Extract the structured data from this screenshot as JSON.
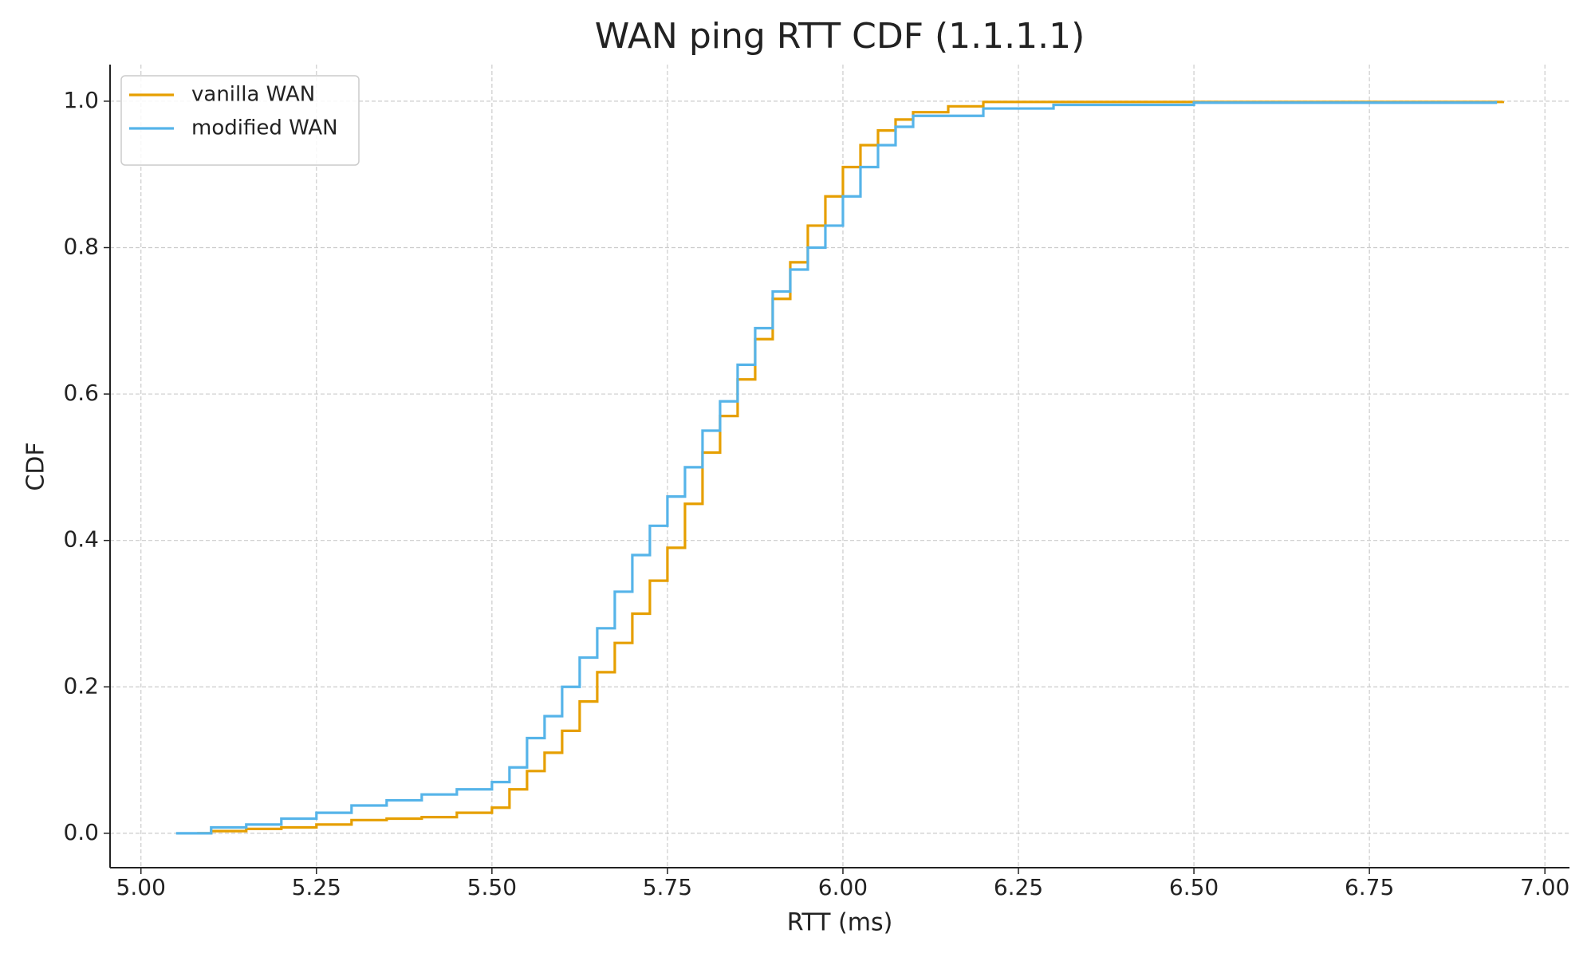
{
  "chart_data": {
    "type": "line",
    "step": "post",
    "title": "WAN ping RTT CDF (1.1.1.1)",
    "x_label": "RTT (ms)",
    "y_label": "CDF",
    "xlim": [
      4.956,
      7.035
    ],
    "ylim": [
      -0.047,
      1.05
    ],
    "xticks": [
      {
        "value": 5,
        "label": "5.00"
      },
      {
        "value": 5.25,
        "label": "5.25"
      },
      {
        "value": 5.5,
        "label": "5.50"
      },
      {
        "value": 5.75,
        "label": "5.75"
      },
      {
        "value": 6,
        "label": "6.00"
      },
      {
        "value": 6.25,
        "label": "6.25"
      },
      {
        "value": 6.5,
        "label": "6.50"
      },
      {
        "value": 6.75,
        "label": "6.75"
      },
      {
        "value": 7,
        "label": "7.00"
      }
    ],
    "yticks": [
      {
        "value": 0,
        "label": "0.0"
      },
      0.2,
      0.4,
      0.6,
      0.8,
      {
        "value": 1,
        "label": "1.0"
      }
    ],
    "grid": true,
    "legend": "upper left",
    "series": [
      {
        "name": "vanilla WAN",
        "color": "#E69F00",
        "x": [
          5.08,
          5.1,
          5.15,
          5.2,
          5.25,
          5.3,
          5.35,
          5.4,
          5.45,
          5.5,
          5.525,
          5.55,
          5.575,
          5.6,
          5.625,
          5.65,
          5.675,
          5.7,
          5.725,
          5.75,
          5.775,
          5.8,
          5.825,
          5.85,
          5.875,
          5.9,
          5.925,
          5.95,
          5.975,
          6.0,
          6.025,
          6.05,
          6.075,
          6.1,
          6.15,
          6.2,
          6.94
        ],
        "values": [
          0,
          0.003,
          0.006,
          0.008,
          0.012,
          0.018,
          0.02,
          0.022,
          0.028,
          0.035,
          0.06,
          0.085,
          0.11,
          0.14,
          0.18,
          0.22,
          0.26,
          0.3,
          0.345,
          0.39,
          0.45,
          0.52,
          0.57,
          0.62,
          0.675,
          0.73,
          0.78,
          0.83,
          0.87,
          0.91,
          0.94,
          0.96,
          0.975,
          0.985,
          0.993,
          0.999,
          1.0
        ]
      },
      {
        "name": "modified WAN",
        "color": "#56B4E9",
        "x": [
          5.05,
          5.1,
          5.15,
          5.2,
          5.25,
          5.3,
          5.35,
          5.4,
          5.45,
          5.5,
          5.525,
          5.55,
          5.575,
          5.6,
          5.625,
          5.65,
          5.675,
          5.7,
          5.725,
          5.75,
          5.775,
          5.8,
          5.825,
          5.85,
          5.875,
          5.9,
          5.925,
          5.95,
          5.975,
          6.0,
          6.025,
          6.05,
          6.075,
          6.1,
          6.2,
          6.3,
          6.5,
          6.93
        ],
        "values": [
          0,
          0.008,
          0.012,
          0.02,
          0.028,
          0.038,
          0.045,
          0.053,
          0.06,
          0.07,
          0.09,
          0.13,
          0.16,
          0.2,
          0.24,
          0.28,
          0.33,
          0.38,
          0.42,
          0.46,
          0.5,
          0.55,
          0.59,
          0.64,
          0.69,
          0.74,
          0.77,
          0.8,
          0.83,
          0.87,
          0.91,
          0.94,
          0.965,
          0.98,
          0.99,
          0.995,
          0.998,
          1.0
        ]
      }
    ]
  }
}
